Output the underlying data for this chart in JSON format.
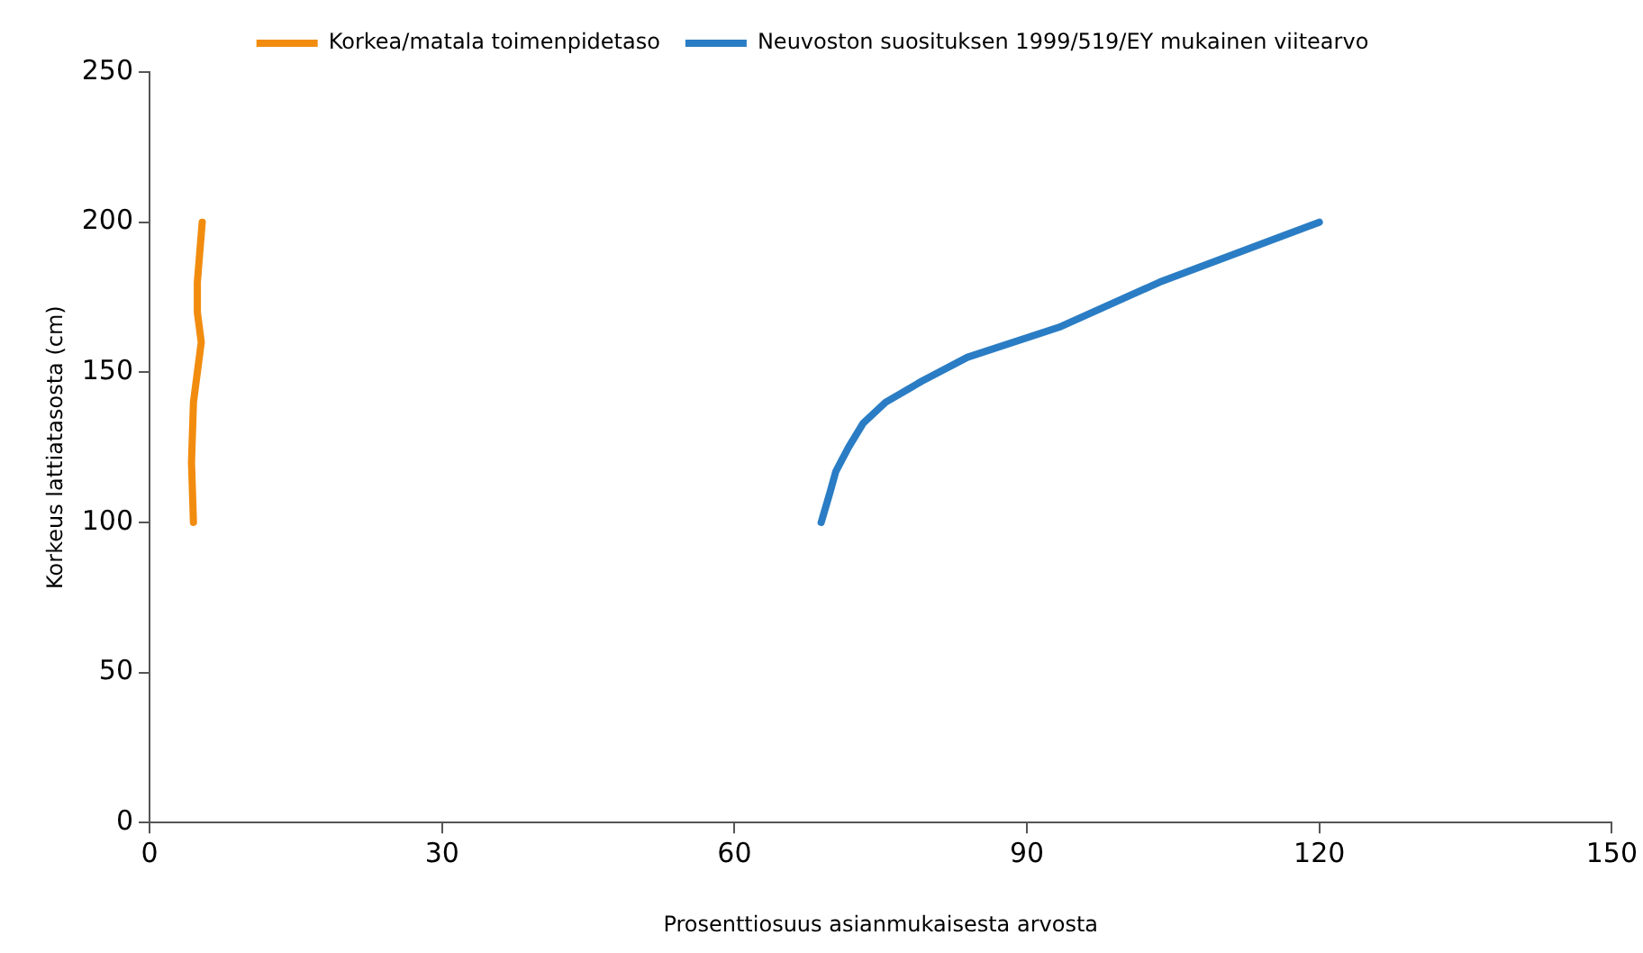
{
  "chart_data": {
    "type": "line",
    "xlabel": "Prosenttiosuus asianmukaisesta arvosta",
    "ylabel": "Korkeus lattiatasosta (cm)",
    "xlim": [
      0,
      150
    ],
    "xticks": [
      0,
      30,
      60,
      90,
      120,
      150
    ],
    "ylim": [
      0,
      250
    ],
    "yticks": [
      0,
      50,
      100,
      150,
      200,
      250
    ],
    "grid": false,
    "legend": "top",
    "marker": "none",
    "line_style": "solid",
    "series": [
      {
        "name": "Korkea/matala toimenpidetaso",
        "color": "#f28c0f",
        "x": [
          4.5,
          4.3,
          4.5,
          4.9,
          5.3,
          4.9,
          4.9,
          5.4
        ],
        "values": [
          100,
          120,
          140,
          150,
          160,
          170,
          180,
          200
        ]
      },
      {
        "name": "Neuvoston suosituksen 1999/519/EY mukainen viitearvo",
        "color": "#2a7dc4",
        "x": [
          68.9,
          69.8,
          70.4,
          71.7,
          73.2,
          75.5,
          79.2,
          83.9,
          93.3,
          103.6,
          120
        ],
        "values": [
          100,
          110,
          117,
          125,
          133,
          140,
          147,
          155,
          165,
          180,
          200
        ]
      }
    ]
  }
}
